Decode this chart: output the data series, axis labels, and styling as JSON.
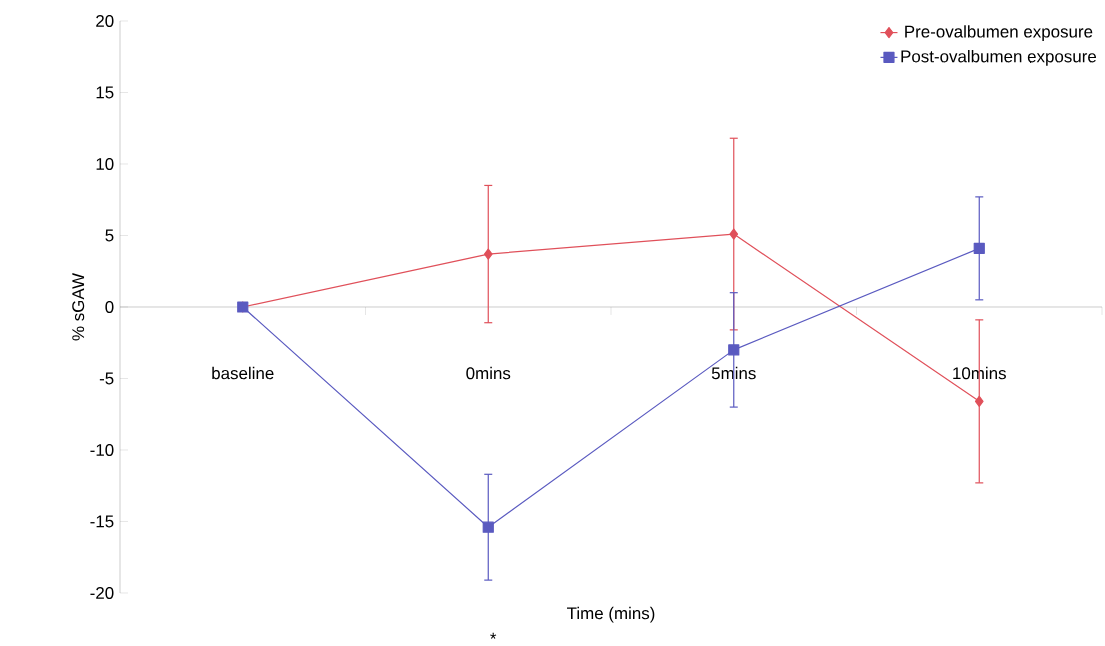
{
  "chart_data": {
    "type": "line",
    "xlabel": "Time (mins)",
    "ylabel": "% sGAW",
    "categories": [
      "baseline",
      "0mins",
      "5mins",
      "10mins"
    ],
    "series": [
      {
        "name": "Pre-ovalbumen exposure",
        "color": "#e0505a",
        "marker": "diamond",
        "values": [
          0,
          3.7,
          5.1,
          -6.6
        ],
        "errors": [
          null,
          4.8,
          6.7,
          5.7
        ]
      },
      {
        "name": "Post-ovalbumen exposure",
        "color": "#5a5ac0",
        "marker": "square",
        "values": [
          0,
          -15.4,
          -3.0,
          4.1
        ],
        "errors": [
          null,
          3.7,
          4.0,
          3.6
        ]
      }
    ],
    "ylim": [
      -20,
      20
    ],
    "yticks": [
      -20,
      -15,
      -10,
      -5,
      0,
      5,
      10,
      15,
      20
    ],
    "legend": "top right",
    "line_style": "solid",
    "annotations": [
      "*"
    ]
  }
}
